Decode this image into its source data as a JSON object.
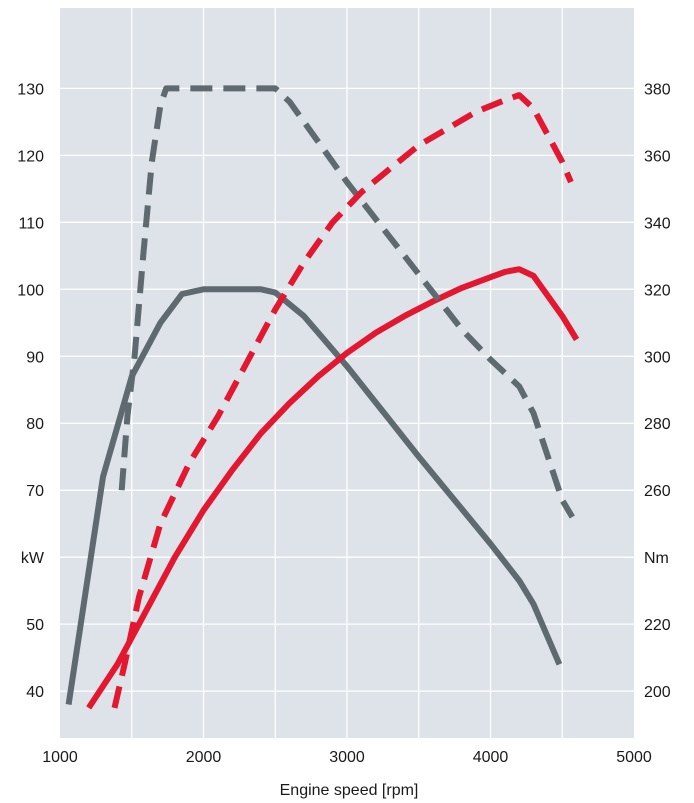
{
  "chart_data": {
    "type": "line",
    "title": "",
    "xlabel": "Engine speed [rpm]",
    "xlim": [
      1000,
      5000
    ],
    "x_ticks": [
      1000,
      2000,
      3000,
      4000,
      5000
    ],
    "y_left": {
      "unit_label": "kW",
      "ylim": [
        33,
        142
      ],
      "ticks": [
        40,
        50,
        60,
        70,
        80,
        90,
        100,
        110,
        120,
        130
      ],
      "tick_labels": [
        "40",
        "50",
        "kW",
        "70",
        "80",
        "90",
        "100",
        "110",
        "120",
        "130"
      ]
    },
    "y_right": {
      "unit_label": "Nm",
      "ylim": [
        186,
        404
      ],
      "ticks": [
        200,
        220,
        240,
        260,
        280,
        300,
        320,
        340,
        360,
        380
      ],
      "tick_labels": [
        "200",
        "220",
        "Nm",
        "260",
        "280",
        "300",
        "320",
        "340",
        "360",
        "380"
      ]
    },
    "grid": true,
    "colors": {
      "plot_bg": "#dde3e8",
      "grid": "#ffffff",
      "gray": "#5f6a70",
      "red": "#e3172f"
    },
    "series": [
      {
        "axis": "left",
        "color": "gray",
        "style": "solid",
        "points": [
          [
            1060,
            38
          ],
          [
            1300,
            72
          ],
          [
            1500,
            87
          ],
          [
            1700,
            95
          ],
          [
            1850,
            99.3
          ],
          [
            2000,
            100
          ],
          [
            2200,
            100
          ],
          [
            2400,
            100
          ],
          [
            2500,
            99.5
          ],
          [
            2700,
            96
          ],
          [
            3000,
            88.5
          ],
          [
            3500,
            75
          ],
          [
            4000,
            62
          ],
          [
            4200,
            56.5
          ],
          [
            4300,
            53
          ],
          [
            4480,
            44
          ]
        ]
      },
      {
        "axis": "left",
        "color": "red",
        "style": "solid",
        "points": [
          [
            1200,
            37.5
          ],
          [
            1400,
            44
          ],
          [
            1600,
            52
          ],
          [
            1800,
            60
          ],
          [
            2000,
            67
          ],
          [
            2200,
            73
          ],
          [
            2400,
            78.5
          ],
          [
            2600,
            83
          ],
          [
            2800,
            87
          ],
          [
            3000,
            90.5
          ],
          [
            3200,
            93.5
          ],
          [
            3400,
            96
          ],
          [
            3600,
            98.2
          ],
          [
            3800,
            100.2
          ],
          [
            4000,
            101.8
          ],
          [
            4100,
            102.6
          ],
          [
            4200,
            103
          ],
          [
            4300,
            102
          ],
          [
            4400,
            99
          ],
          [
            4500,
            96
          ],
          [
            4600,
            92.5
          ]
        ]
      },
      {
        "axis": "right",
        "color": "gray",
        "style": "dashed",
        "points": [
          [
            1430,
            260
          ],
          [
            1470,
            282
          ],
          [
            1520,
            300
          ],
          [
            1580,
            330
          ],
          [
            1640,
            358
          ],
          [
            1700,
            375
          ],
          [
            1740,
            380
          ],
          [
            2000,
            380
          ],
          [
            2300,
            380
          ],
          [
            2500,
            380
          ],
          [
            2600,
            376
          ],
          [
            2800,
            364
          ],
          [
            3000,
            352
          ],
          [
            3200,
            341
          ],
          [
            3400,
            330
          ],
          [
            3600,
            319
          ],
          [
            3800,
            308
          ],
          [
            4000,
            299
          ],
          [
            4100,
            295
          ],
          [
            4200,
            291
          ],
          [
            4300,
            283
          ],
          [
            4400,
            270
          ],
          [
            4500,
            257
          ],
          [
            4570,
            252
          ]
        ]
      },
      {
        "axis": "right",
        "color": "red",
        "style": "dashed",
        "points": [
          [
            1380,
            195
          ],
          [
            1450,
            208
          ],
          [
            1550,
            228
          ],
          [
            1700,
            250
          ],
          [
            1900,
            268
          ],
          [
            2100,
            282
          ],
          [
            2300,
            298
          ],
          [
            2500,
            314
          ],
          [
            2700,
            328
          ],
          [
            2900,
            340
          ],
          [
            3100,
            349
          ],
          [
            3300,
            356
          ],
          [
            3500,
            363
          ],
          [
            3700,
            368
          ],
          [
            3900,
            373
          ],
          [
            4100,
            376.5
          ],
          [
            4200,
            378
          ],
          [
            4300,
            374
          ],
          [
            4400,
            366
          ],
          [
            4500,
            358
          ],
          [
            4560,
            352
          ]
        ]
      }
    ]
  }
}
